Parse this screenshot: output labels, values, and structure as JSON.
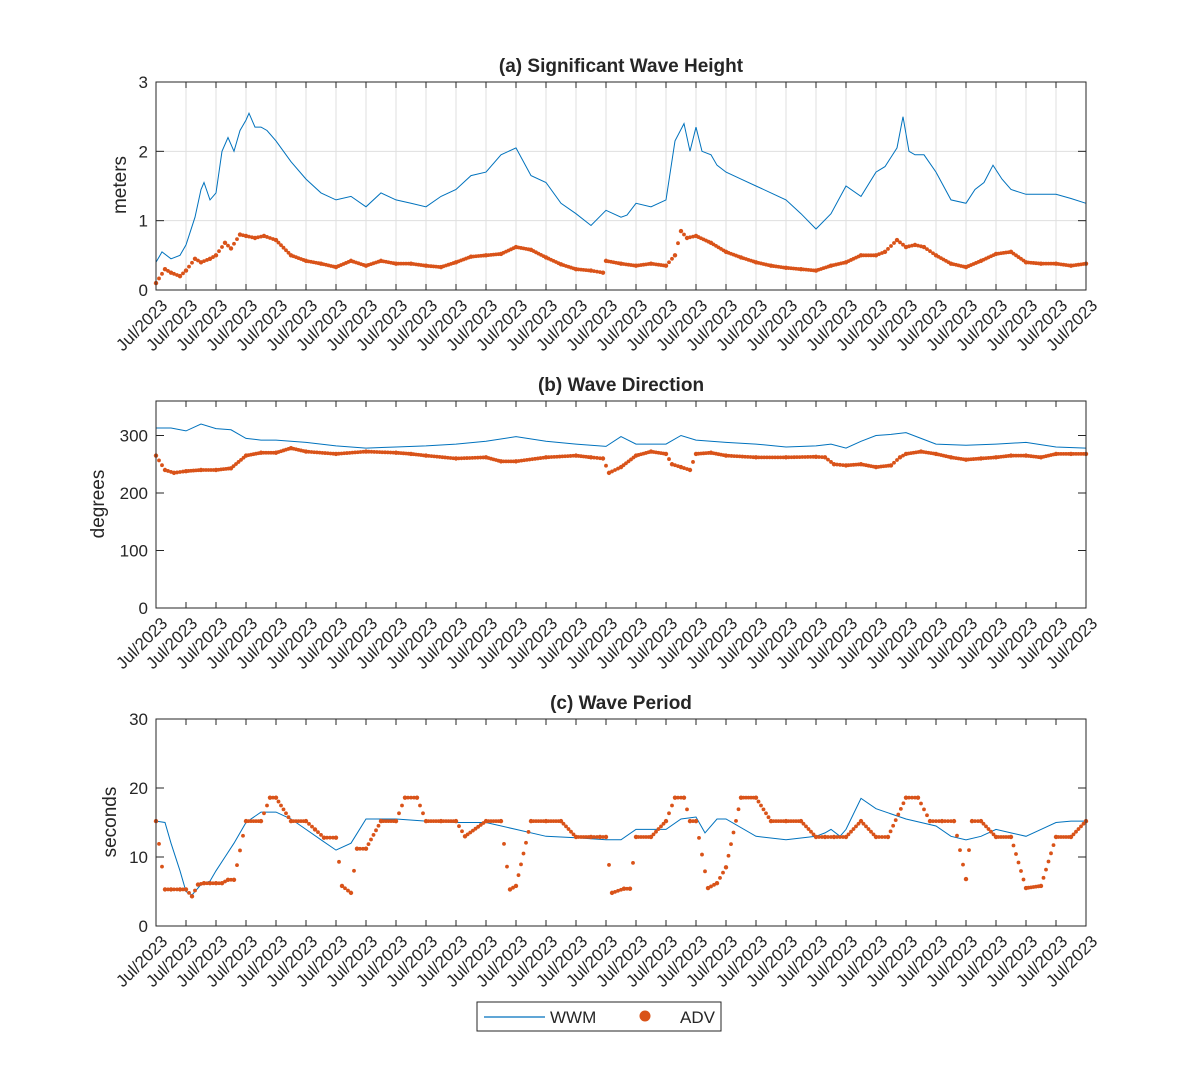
{
  "chart_data": [
    {
      "type": "line",
      "title": "(a) Significant Wave Height",
      "xlabel": "",
      "ylabel": "meters",
      "ylim": [
        0,
        3
      ],
      "yticks": [
        0,
        1,
        2,
        3
      ],
      "xlim": [
        0,
        31
      ],
      "xtick_labels": [
        "Jul/2023",
        "Jul/2023",
        "Jul/2023",
        "Jul/2023",
        "Jul/2023",
        "Jul/2023",
        "Jul/2023",
        "Jul/2023",
        "Jul/2023",
        "Jul/2023",
        "Jul/2023",
        "Jul/2023",
        "Jul/2023",
        "Jul/2023",
        "Jul/2023",
        "Jul/2023",
        "Jul/2023",
        "Jul/2023",
        "Jul/2023",
        "Jul/2023",
        "Jul/2023",
        "Jul/2023",
        "Jul/2023",
        "Jul/2023",
        "Jul/2023",
        "Jul/2023",
        "Jul/2023",
        "Jul/2023",
        "Jul/2023",
        "Jul/2023",
        "Jul/2023",
        "Jul/2023"
      ],
      "grid": true,
      "series": [
        {
          "name": "WWM",
          "style": "line",
          "color": "#0072BD",
          "x": [
            0,
            0.2,
            0.5,
            0.8,
            1.0,
            1.3,
            1.5,
            1.6,
            1.8,
            2.0,
            2.2,
            2.4,
            2.6,
            2.8,
            3.0,
            3.1,
            3.3,
            3.5,
            3.7,
            4.0,
            4.5,
            5.0,
            5.5,
            6.0,
            6.5,
            7.0,
            7.5,
            8.0,
            8.5,
            9.0,
            9.5,
            10.0,
            10.5,
            11.0,
            11.5,
            12.0,
            12.5,
            13.0,
            13.5,
            14.0,
            14.5,
            15.0,
            15.5,
            15.7,
            16.0,
            16.5,
            17.0,
            17.3,
            17.6,
            17.8,
            18.0,
            18.2,
            18.5,
            18.7,
            19.0,
            19.5,
            20.0,
            20.5,
            21.0,
            21.5,
            22.0,
            22.5,
            23.0,
            23.5,
            24.0,
            24.3,
            24.7,
            24.9,
            25.1,
            25.3,
            25.6,
            26.0,
            26.5,
            27.0,
            27.3,
            27.6,
            27.9,
            28.2,
            28.5,
            29.0,
            29.5,
            30.0,
            30.5,
            31.0
          ],
          "y": [
            0.4,
            0.55,
            0.45,
            0.5,
            0.65,
            1.05,
            1.45,
            1.55,
            1.3,
            1.4,
            2.0,
            2.2,
            2.0,
            2.3,
            2.45,
            2.55,
            2.35,
            2.35,
            2.3,
            2.15,
            1.85,
            1.6,
            1.4,
            1.3,
            1.35,
            1.2,
            1.4,
            1.3,
            1.25,
            1.2,
            1.35,
            1.45,
            1.65,
            1.7,
            1.95,
            2.05,
            1.65,
            1.55,
            1.25,
            1.1,
            0.93,
            1.15,
            1.05,
            1.08,
            1.25,
            1.2,
            1.3,
            2.15,
            2.4,
            2.0,
            2.35,
            2.0,
            1.95,
            1.8,
            1.7,
            1.6,
            1.5,
            1.4,
            1.3,
            1.1,
            0.88,
            1.1,
            1.5,
            1.35,
            1.7,
            1.78,
            2.05,
            2.5,
            2.0,
            1.95,
            1.95,
            1.7,
            1.3,
            1.25,
            1.45,
            1.55,
            1.8,
            1.6,
            1.45,
            1.38,
            1.38,
            1.38,
            1.32,
            1.25
          ]
        },
        {
          "name": "ADV",
          "style": "markers",
          "color": "#D95319",
          "x": [
            0,
            0.3,
            0.5,
            0.8,
            1.0,
            1.3,
            1.5,
            1.8,
            2.0,
            2.3,
            2.5,
            2.8,
            3.0,
            3.3,
            3.6,
            4.0,
            4.5,
            5.0,
            5.5,
            6.0,
            6.5,
            7.0,
            7.5,
            8.0,
            8.5,
            9.0,
            9.5,
            10.0,
            10.5,
            11.0,
            11.5,
            12.0,
            12.5,
            13.0,
            13.5,
            14.0,
            14.5,
            14.9,
            15.0,
            15.5,
            16.0,
            16.5,
            17.0,
            17.3,
            17.5,
            17.7,
            18.0,
            18.5,
            19.0,
            19.5,
            20.0,
            20.5,
            21.0,
            21.5,
            22.0,
            22.5,
            23.0,
            23.5,
            24.0,
            24.3,
            24.7,
            25.0,
            25.3,
            25.6,
            26.0,
            26.5,
            27.0,
            27.5,
            28.0,
            28.5,
            29.0,
            29.5,
            30.0,
            30.5,
            31.0
          ],
          "y": [
            0.1,
            0.3,
            0.25,
            0.2,
            0.28,
            0.45,
            0.4,
            0.45,
            0.5,
            0.68,
            0.6,
            0.8,
            0.78,
            0.75,
            0.78,
            0.72,
            0.5,
            0.42,
            0.38,
            0.33,
            0.42,
            0.35,
            0.42,
            0.38,
            0.38,
            0.35,
            0.33,
            0.4,
            0.48,
            0.5,
            0.52,
            0.62,
            0.58,
            0.47,
            0.37,
            0.3,
            0.28,
            0.25,
            0.42,
            0.38,
            0.35,
            0.38,
            0.35,
            0.5,
            0.85,
            0.75,
            0.78,
            0.68,
            0.55,
            0.47,
            0.4,
            0.35,
            0.32,
            0.3,
            0.28,
            0.35,
            0.4,
            0.5,
            0.5,
            0.55,
            0.72,
            0.62,
            0.65,
            0.62,
            0.5,
            0.38,
            0.33,
            0.42,
            0.52,
            0.55,
            0.4,
            0.38,
            0.38,
            0.35,
            0.38
          ]
        }
      ]
    },
    {
      "type": "line",
      "title": "(b) Wave Direction",
      "xlabel": "",
      "ylabel": "degrees",
      "ylim": [
        0,
        360
      ],
      "yticks": [
        0,
        100,
        200,
        300
      ],
      "xlim": [
        0,
        31
      ],
      "xtick_labels": [
        "Jul/2023",
        "Jul/2023",
        "Jul/2023",
        "Jul/2023",
        "Jul/2023",
        "Jul/2023",
        "Jul/2023",
        "Jul/2023",
        "Jul/2023",
        "Jul/2023",
        "Jul/2023",
        "Jul/2023",
        "Jul/2023",
        "Jul/2023",
        "Jul/2023",
        "Jul/2023",
        "Jul/2023",
        "Jul/2023",
        "Jul/2023",
        "Jul/2023",
        "Jul/2023",
        "Jul/2023",
        "Jul/2023",
        "Jul/2023",
        "Jul/2023",
        "Jul/2023",
        "Jul/2023",
        "Jul/2023",
        "Jul/2023",
        "Jul/2023",
        "Jul/2023",
        "Jul/2023"
      ],
      "grid": false,
      "series": [
        {
          "name": "WWM",
          "style": "line",
          "color": "#0072BD",
          "x": [
            0,
            0.5,
            1.0,
            1.5,
            2.0,
            2.5,
            3.0,
            3.5,
            4.0,
            5.0,
            6.0,
            7.0,
            8.0,
            9.0,
            10.0,
            11.0,
            12.0,
            13.0,
            14.0,
            14.5,
            15.0,
            15.5,
            16.0,
            17.0,
            17.5,
            18.0,
            18.5,
            19.0,
            20.0,
            21.0,
            22.0,
            22.5,
            23.0,
            23.5,
            24.0,
            24.5,
            25.0,
            25.5,
            26.0,
            27.0,
            28.0,
            29.0,
            30.0,
            31.0
          ],
          "y": [
            313,
            313,
            308,
            320,
            312,
            310,
            295,
            292,
            292,
            288,
            282,
            278,
            280,
            282,
            285,
            290,
            298,
            290,
            285,
            283,
            281,
            298,
            285,
            285,
            300,
            292,
            290,
            288,
            285,
            280,
            282,
            285,
            278,
            290,
            300,
            302,
            305,
            295,
            285,
            283,
            285,
            288,
            280,
            278
          ]
        },
        {
          "name": "ADV",
          "style": "markers",
          "color": "#D95319",
          "x": [
            0,
            0.3,
            0.6,
            1.0,
            1.5,
            2.0,
            2.5,
            3.0,
            3.5,
            4.0,
            4.5,
            5.0,
            6.0,
            7.0,
            8.0,
            8.5,
            9.0,
            10.0,
            11.0,
            11.5,
            12.0,
            13.0,
            14.0,
            14.5,
            14.9,
            15.1,
            15.5,
            16.0,
            16.5,
            17.0,
            17.2,
            17.5,
            17.8,
            18.0,
            18.5,
            19.0,
            20.0,
            21.0,
            22.0,
            22.3,
            22.6,
            23.0,
            23.5,
            24.0,
            24.5,
            24.8,
            25.0,
            25.5,
            26.0,
            26.5,
            27.0,
            27.5,
            28.0,
            28.5,
            29.0,
            29.5,
            30.0,
            30.5,
            31.0
          ],
          "y": [
            265,
            240,
            235,
            238,
            240,
            240,
            243,
            265,
            270,
            270,
            278,
            272,
            268,
            272,
            270,
            268,
            265,
            260,
            262,
            255,
            255,
            262,
            265,
            262,
            260,
            235,
            245,
            265,
            272,
            268,
            250,
            245,
            240,
            268,
            270,
            265,
            262,
            262,
            263,
            262,
            250,
            248,
            250,
            245,
            248,
            262,
            268,
            272,
            268,
            262,
            258,
            260,
            262,
            265,
            265,
            262,
            268,
            268,
            268
          ]
        }
      ]
    },
    {
      "type": "line",
      "title": "(c) Wave Period",
      "xlabel": "",
      "ylabel": "seconds",
      "ylim": [
        0,
        30
      ],
      "yticks": [
        0,
        10,
        20,
        30
      ],
      "xlim": [
        0,
        31
      ],
      "xtick_labels": [
        "Jul/2023",
        "Jul/2023",
        "Jul/2023",
        "Jul/2023",
        "Jul/2023",
        "Jul/2023",
        "Jul/2023",
        "Jul/2023",
        "Jul/2023",
        "Jul/2023",
        "Jul/2023",
        "Jul/2023",
        "Jul/2023",
        "Jul/2023",
        "Jul/2023",
        "Jul/2023",
        "Jul/2023",
        "Jul/2023",
        "Jul/2023",
        "Jul/2023",
        "Jul/2023",
        "Jul/2023",
        "Jul/2023",
        "Jul/2023",
        "Jul/2023",
        "Jul/2023",
        "Jul/2023",
        "Jul/2023",
        "Jul/2023",
        "Jul/2023",
        "Jul/2023",
        "Jul/2023"
      ],
      "grid": false,
      "series": [
        {
          "name": "WWM",
          "style": "line",
          "color": "#0072BD",
          "x": [
            0,
            0.3,
            0.5,
            0.8,
            1.0,
            1.2,
            1.5,
            1.8,
            2.0,
            2.3,
            2.6,
            3.0,
            3.5,
            4.0,
            4.5,
            5.0,
            5.5,
            6.0,
            6.5,
            7.0,
            7.5,
            8.0,
            9.0,
            10.0,
            11.0,
            12.0,
            13.0,
            14.0,
            15.0,
            15.5,
            16.0,
            17.0,
            17.5,
            18.0,
            18.3,
            18.7,
            19.0,
            20.0,
            21.0,
            22.0,
            22.3,
            22.5,
            22.8,
            23.0,
            23.5,
            24.0,
            25.0,
            26.0,
            26.5,
            27.0,
            27.5,
            28.0,
            28.5,
            29.0,
            29.5,
            30.0,
            30.5,
            31.0
          ],
          "y": [
            15.2,
            15.0,
            12.0,
            8.0,
            5.0,
            4.5,
            6.0,
            6.5,
            8.0,
            10.0,
            12.0,
            15.0,
            16.5,
            16.5,
            15.5,
            14.0,
            12.5,
            11.0,
            12.0,
            15.5,
            15.5,
            15.5,
            15.2,
            15.0,
            15.0,
            14.0,
            13.0,
            12.8,
            12.5,
            12.5,
            14.0,
            14.0,
            15.5,
            15.8,
            13.5,
            15.5,
            15.5,
            13.0,
            12.5,
            13.0,
            13.5,
            14.0,
            13.0,
            14.0,
            18.5,
            17.0,
            15.5,
            14.5,
            13.0,
            12.5,
            13.0,
            14.0,
            13.5,
            13.0,
            14.0,
            15.0,
            15.2,
            15.2
          ]
        },
        {
          "name": "ADV",
          "style": "markers",
          "color": "#D95319",
          "x": [
            0,
            0.3,
            0.5,
            0.8,
            1.0,
            1.2,
            1.4,
            1.6,
            1.8,
            2.0,
            2.2,
            2.4,
            2.6,
            3.0,
            3.5,
            3.8,
            4.0,
            4.5,
            5.0,
            5.3,
            5.6,
            6.0,
            6.2,
            6.5,
            6.7,
            7.0,
            7.5,
            8.0,
            8.3,
            8.7,
            9.0,
            9.5,
            10.0,
            10.3,
            11.0,
            11.5,
            11.8,
            12.0,
            12.5,
            13.0,
            13.5,
            14.0,
            14.5,
            14.8,
            15.0,
            15.2,
            15.6,
            15.8,
            16.0,
            16.5,
            17.0,
            17.3,
            17.6,
            17.8,
            18.0,
            18.4,
            18.7,
            19.0,
            19.5,
            20.0,
            20.5,
            21.0,
            21.5,
            22.0,
            22.3,
            22.6,
            23.0,
            23.5,
            24.0,
            24.4,
            25.0,
            25.4,
            25.8,
            26.2,
            26.6,
            27.0,
            27.2,
            27.5,
            28.0,
            28.5,
            29.0,
            29.5,
            30.0,
            30.5,
            31.0
          ],
          "y": [
            15.2,
            5.3,
            5.3,
            5.3,
            5.3,
            4.3,
            6.0,
            6.2,
            6.2,
            6.2,
            6.2,
            6.7,
            6.7,
            15.2,
            15.2,
            18.6,
            18.6,
            15.2,
            15.2,
            14.0,
            12.8,
            12.8,
            5.8,
            4.8,
            11.2,
            11.2,
            15.2,
            15.2,
            18.6,
            18.6,
            15.2,
            15.2,
            15.2,
            13.0,
            15.2,
            15.2,
            5.3,
            5.8,
            15.2,
            15.2,
            15.2,
            12.9,
            12.9,
            12.9,
            12.9,
            4.8,
            5.4,
            5.4,
            12.9,
            12.9,
            15.2,
            18.6,
            18.6,
            15.2,
            15.2,
            5.5,
            6.2,
            8.5,
            18.6,
            18.6,
            15.2,
            15.2,
            15.2,
            12.9,
            12.9,
            12.9,
            12.9,
            15.2,
            12.9,
            12.9,
            18.6,
            18.6,
            15.2,
            15.2,
            15.2,
            6.8,
            15.2,
            15.2,
            12.9,
            12.9,
            5.5,
            5.8,
            12.9,
            12.9,
            15.2
          ]
        }
      ]
    }
  ],
  "legend": {
    "items": [
      {
        "label": "WWM",
        "marker": "line",
        "color": "#0072BD"
      },
      {
        "label": "ADV",
        "marker": "dot",
        "color": "#D95319"
      }
    ],
    "placement": "bottom-center"
  }
}
